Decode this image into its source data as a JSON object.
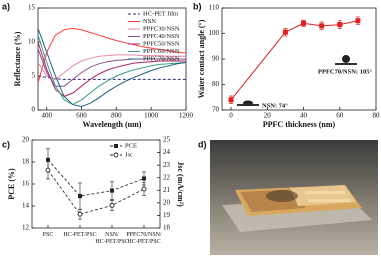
{
  "chart_data": [
    {
      "type": "line",
      "panel_label": "a)",
      "xlabel": "Wavelength (nm)",
      "ylabel": "Reflectance (%)",
      "x": [
        350,
        400,
        450,
        500,
        550,
        600,
        650,
        700,
        750,
        800,
        850,
        900,
        950,
        1000,
        1050,
        1100,
        1150,
        1200
      ],
      "xlim": [
        350,
        1200
      ],
      "xticks": [
        400,
        600,
        800,
        1000,
        1200
      ],
      "ylim": [
        0,
        15
      ],
      "yticks": [
        0,
        5,
        10,
        15
      ],
      "legend": "upper right",
      "series": [
        {
          "name": "HC-PET film",
          "color": "#2a2f7a",
          "dashed": true,
          "values": [
            5.0,
            4.8,
            4.6,
            4.5,
            4.5,
            4.5,
            4.5,
            4.5,
            4.5,
            4.5,
            4.5,
            4.5,
            4.5,
            4.5,
            4.5,
            4.5,
            4.5,
            4.5
          ]
        },
        {
          "name": "NSN",
          "color": "#ff3b3b",
          "values": [
            4.0,
            8.5,
            11.0,
            11.8,
            12.0,
            11.8,
            11.4,
            11.0,
            10.6,
            10.2,
            9.9,
            9.6,
            9.3,
            9.1,
            8.9,
            8.7,
            8.5,
            8.4
          ]
        },
        {
          "name": "PPFC30/NSN",
          "color": "#e58aa6",
          "values": [
            7.0,
            5.0,
            4.5,
            5.5,
            6.5,
            7.2,
            7.6,
            7.9,
            8.0,
            8.1,
            8.1,
            8.1,
            8.0,
            8.0,
            8.0,
            7.9,
            7.9,
            7.9
          ]
        },
        {
          "name": "PPFC40/NSN",
          "color": "#8d4f8f",
          "values": [
            9.0,
            5.5,
            3.5,
            3.5,
            4.5,
            5.5,
            6.3,
            6.8,
            7.1,
            7.3,
            7.4,
            7.5,
            7.5,
            7.5,
            7.5,
            7.5,
            7.5,
            7.5
          ]
        },
        {
          "name": "PPFC50/NSN",
          "color": "#b0245e",
          "values": [
            10.0,
            6.0,
            3.0,
            2.0,
            2.5,
            3.5,
            4.5,
            5.3,
            5.9,
            6.3,
            6.6,
            6.9,
            7.0,
            7.1,
            7.2,
            7.2,
            7.2,
            7.2
          ]
        },
        {
          "name": "PPFC60/NSN",
          "color": "#3a9a8a",
          "values": [
            11.0,
            7.0,
            3.5,
            1.5,
            0.8,
            1.5,
            2.5,
            3.5,
            4.3,
            5.0,
            5.5,
            5.9,
            6.2,
            6.5,
            6.7,
            6.8,
            6.9,
            7.0
          ]
        },
        {
          "name": "PPFC70/NSN",
          "color": "#1f5f7f",
          "values": [
            12.0,
            8.5,
            5.0,
            2.0,
            0.8,
            0.5,
            1.0,
            1.8,
            2.7,
            3.5,
            4.2,
            4.8,
            5.3,
            5.8,
            6.2,
            6.5,
            6.8,
            7.0
          ]
        }
      ]
    },
    {
      "type": "scatter",
      "panel_label": "b)",
      "xlabel": "PPFC thickness (nm)",
      "ylabel": "Water contact angle (°)",
      "x": [
        0,
        30,
        40,
        50,
        60,
        70
      ],
      "values": [
        74,
        100.5,
        104,
        103,
        103.5,
        105
      ],
      "errors": [
        1.5,
        1.5,
        1.2,
        1.5,
        1.5,
        1.5
      ],
      "color": "#e02020",
      "xlim": [
        -5,
        80
      ],
      "xticks": [
        0,
        20,
        40,
        60,
        80
      ],
      "ylim": [
        70,
        110
      ],
      "yticks": [
        70,
        80,
        90,
        100,
        110
      ],
      "annotations": [
        "NSN: 74°",
        "PPFC70/NSN: 105°"
      ]
    },
    {
      "type": "line",
      "panel_label": "c)",
      "ylabel": "PCE (%)",
      "y2label": "Jsc (mA/cm²)",
      "categories": [
        "PSC",
        "HC-PET/PSC",
        "NSN/\nHC-PET/PSC",
        "PPFC70/NSN/\nHC-PET/PSC"
      ],
      "ylim": [
        12,
        20
      ],
      "yticks": [
        12,
        14,
        16,
        18,
        20
      ],
      "y2lim": [
        18,
        25
      ],
      "y2ticks": [
        18,
        19,
        20,
        21,
        22,
        23,
        24,
        25
      ],
      "legend": "upper right",
      "series": [
        {
          "name": "PCE",
          "color": "#222222",
          "dashed": true,
          "marker": "square",
          "values": [
            18.2,
            14.9,
            15.4,
            16.5
          ],
          "errors": [
            1.0,
            1.2,
            0.8,
            0.6
          ]
        },
        {
          "name": "Jsc",
          "color": "#222222",
          "dashed": true,
          "marker": "circle",
          "axis": "y2",
          "values": [
            22.6,
            19.1,
            19.8,
            21.1
          ],
          "errors": [
            0.7,
            0.4,
            0.4,
            0.5
          ]
        }
      ]
    },
    {
      "type": "image",
      "panel_label": "d)"
    }
  ]
}
